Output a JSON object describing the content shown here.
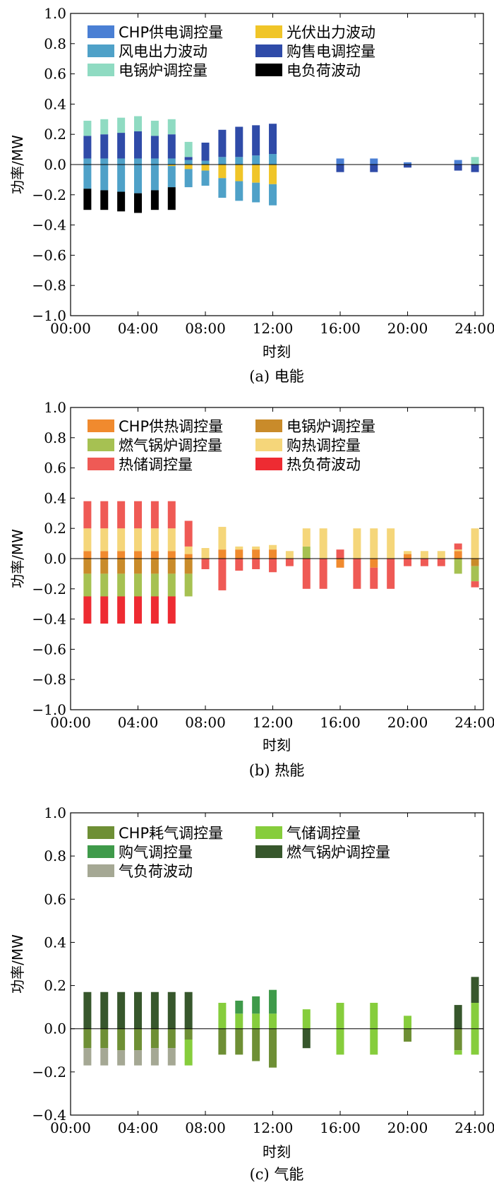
{
  "chart_data": [
    {
      "type": "bar",
      "stacked": true,
      "caption": "(a) 电能",
      "xlabel": "时刻",
      "ylabel": "功率/MW",
      "xlim": [
        0,
        24.5
      ],
      "ylim": [
        -1.0,
        1.0
      ],
      "yticks": [
        "1.0",
        "0.8",
        "0.6",
        "0.4",
        "0.2",
        "0.0",
        "−0.2",
        "−0.4",
        "−0.6",
        "−0.8",
        "−1.0"
      ],
      "xticks": [
        "00:00",
        "04:00",
        "08:00",
        "12:00",
        "16:00",
        "20:00",
        "24:00"
      ],
      "hours": [
        1,
        2,
        3,
        4,
        5,
        6,
        7,
        8,
        9,
        10,
        11,
        12,
        16,
        18,
        20,
        23,
        24
      ],
      "legend": {
        "position": "top-left",
        "columns": 2
      },
      "series": [
        {
          "name": "CHP供电调控量",
          "color": "#4a7fd4",
          "values": [
            0,
            0,
            0,
            0,
            0,
            0,
            0,
            0,
            0,
            0,
            0,
            0,
            0.04,
            0.04,
            0.015,
            0.03,
            0
          ]
        },
        {
          "name": "光伏出力波动",
          "color": "#f0c528",
          "values": [
            0,
            0,
            0,
            0,
            0,
            -0.01,
            -0.03,
            -0.04,
            -0.09,
            -0.11,
            -0.12,
            -0.13,
            0,
            0,
            0,
            0,
            0
          ]
        },
        {
          "name": "风电出力波动",
          "color": "#4fa1c8",
          "values": [
            0.04,
            0.04,
            0.04,
            0.04,
            0.04,
            0.04,
            0.03,
            0.025,
            0.05,
            0.05,
            0.06,
            0.07,
            0,
            0,
            0,
            0,
            0
          ]
        },
        {
          "name": "购售电调控量",
          "color": "#2f4ba8",
          "values": [
            0.15,
            0.16,
            0.17,
            0.18,
            0.15,
            0.16,
            0.02,
            0.12,
            0.18,
            0.2,
            0.2,
            0.2,
            -0.05,
            -0.05,
            -0.02,
            -0.04,
            -0.05
          ]
        },
        {
          "name": "电锅炉调控量",
          "color": "#8fdbc2",
          "values": [
            0.1,
            0.1,
            0.1,
            0.1,
            0.1,
            0.1,
            0.1,
            0,
            0,
            0,
            0,
            0,
            0,
            0,
            0,
            0,
            0.05
          ]
        },
        {
          "name": "风电出力波动",
          "color": "#4fa1c8",
          "values": [
            -0.16,
            -0.17,
            -0.18,
            -0.19,
            -0.17,
            -0.14,
            -0.12,
            -0.1,
            -0.13,
            -0.13,
            -0.13,
            -0.14,
            0,
            0,
            0,
            0,
            0
          ],
          "legend": false
        },
        {
          "name": "电负荷波动",
          "color": "#000000",
          "values": [
            -0.14,
            -0.13,
            -0.13,
            -0.13,
            -0.13,
            -0.15,
            0,
            0,
            0,
            0,
            0,
            0,
            0,
            0,
            0,
            0,
            0
          ]
        }
      ]
    },
    {
      "type": "bar",
      "stacked": true,
      "caption": "(b) 热能",
      "xlabel": "时刻",
      "ylabel": "功率/MW",
      "xlim": [
        0,
        24.5
      ],
      "ylim": [
        -1.0,
        1.0
      ],
      "yticks": [
        "1.0",
        "0.8",
        "0.6",
        "0.4",
        "0.2",
        "0.0",
        "−0.2",
        "−0.4",
        "−0.6",
        "−0.8",
        "−1.0"
      ],
      "xticks": [
        "00:00",
        "04:00",
        "08:00",
        "12:00",
        "16:00",
        "20:00",
        "24:00"
      ],
      "hours": [
        1,
        2,
        3,
        4,
        5,
        6,
        7,
        8,
        9,
        10,
        11,
        12,
        13,
        14,
        15,
        16,
        17,
        18,
        19,
        20,
        21,
        22,
        23,
        24
      ],
      "legend": {
        "position": "top-left",
        "columns": 2
      },
      "series": [
        {
          "name": "CHP供热调控量",
          "color": "#f08a2e",
          "values": [
            0.05,
            0.05,
            0.05,
            0.05,
            0.05,
            0.05,
            0.03,
            0,
            0.06,
            0.06,
            0.06,
            0.06,
            0,
            0,
            0,
            -0.06,
            0,
            -0.06,
            0,
            0.03,
            0,
            0,
            0.05,
            0
          ]
        },
        {
          "name": "电锅炉调控量",
          "color": "#c98b2a",
          "values": [
            -0.1,
            -0.1,
            -0.1,
            -0.1,
            -0.1,
            -0.1,
            -0.1,
            0,
            0,
            0,
            0,
            0,
            0,
            0,
            0,
            0,
            0,
            0,
            0,
            0,
            0,
            0,
            0,
            -0.05
          ]
        },
        {
          "name": "燃气锅炉调控量",
          "color": "#a6c152",
          "values": [
            -0.15,
            -0.15,
            -0.15,
            -0.15,
            -0.15,
            -0.15,
            -0.15,
            0,
            0,
            0,
            0,
            0,
            0,
            0.08,
            0,
            0,
            0,
            0,
            0,
            0,
            0,
            0,
            -0.1,
            -0.1
          ]
        },
        {
          "name": "购热调控量",
          "color": "#f5d67a",
          "values": [
            0.15,
            0.15,
            0.15,
            0.15,
            0.15,
            0.15,
            0.05,
            0.07,
            0.15,
            0.02,
            0.02,
            0.03,
            0.05,
            0.12,
            0.2,
            0,
            0.2,
            0.2,
            0.2,
            0.02,
            0.05,
            0.05,
            0.01,
            0.2
          ]
        },
        {
          "name": "热储调控量",
          "color": "#ef5a55",
          "values": [
            0.18,
            0.18,
            0.18,
            0.18,
            0.18,
            0.18,
            0.17,
            -0.07,
            -0.21,
            -0.08,
            -0.07,
            -0.09,
            -0.05,
            -0.2,
            -0.2,
            0.06,
            -0.2,
            -0.14,
            -0.2,
            -0.05,
            -0.05,
            -0.05,
            0.04,
            -0.04
          ]
        },
        {
          "name": "热负荷波动",
          "color": "#ee2b32",
          "values": [
            -0.18,
            -0.18,
            -0.18,
            -0.18,
            -0.18,
            -0.18,
            0,
            0,
            0,
            0,
            0,
            0,
            0,
            0,
            0,
            0,
            0,
            0,
            0,
            0,
            0,
            0,
            0,
            0
          ]
        }
      ]
    },
    {
      "type": "bar",
      "stacked": true,
      "caption": "(c) 气能",
      "xlabel": "时刻",
      "ylabel": "功率/MW",
      "xlim": [
        0,
        24.5
      ],
      "ylim": [
        -0.4,
        1.0
      ],
      "yticks": [
        "1.0",
        "0.8",
        "0.6",
        "0.4",
        "0.2",
        "0.0",
        "−0.2",
        "−0.4"
      ],
      "xticks": [
        "00:00",
        "04:00",
        "08:00",
        "12:00",
        "16:00",
        "20:00",
        "24:00"
      ],
      "hours": [
        1,
        2,
        3,
        4,
        5,
        6,
        7,
        9,
        10,
        11,
        12,
        14,
        16,
        18,
        20,
        23,
        24
      ],
      "legend": {
        "position": "top-left",
        "columns": 2
      },
      "series": [
        {
          "name": "CHP耗气调控量",
          "color": "#6e8f35",
          "values": [
            -0.09,
            -0.09,
            -0.1,
            -0.1,
            -0.09,
            -0.09,
            -0.05,
            -0.12,
            -0.12,
            -0.15,
            -0.18,
            0,
            0,
            0,
            0,
            -0.1,
            0
          ]
        },
        {
          "name": "气储调控量",
          "color": "#86cd3c",
          "values": [
            0,
            0,
            0,
            0,
            0,
            0,
            -0.12,
            0.12,
            0.07,
            0.07,
            0.07,
            0.09,
            0.12,
            0.12,
            0.06,
            0,
            0.12
          ]
        },
        {
          "name": "购气调控量",
          "color": "#3f9a4a",
          "values": [
            0,
            0,
            0,
            0,
            0,
            0,
            0,
            0,
            0.06,
            0.08,
            0.11,
            0,
            0,
            0,
            0,
            0,
            0
          ]
        },
        {
          "name": "燃气锅炉调控量",
          "color": "#37572c",
          "values": [
            0.17,
            0.17,
            0.17,
            0.17,
            0.17,
            0.17,
            0.17,
            0,
            0,
            0,
            0,
            -0.09,
            0,
            0,
            0,
            0.11,
            0.12
          ]
        },
        {
          "name": "气储调控量",
          "color": "#86cd3c",
          "values": [
            0,
            0,
            0,
            0,
            0,
            0,
            0,
            0,
            0,
            0,
            0,
            0,
            -0.12,
            -0.12,
            0,
            -0.02,
            -0.12
          ],
          "legend": false
        },
        {
          "name": "CHP耗气调控量",
          "color": "#6e8f35",
          "values": [
            0,
            0,
            0,
            0,
            0,
            0,
            0,
            0,
            0,
            0,
            0,
            0,
            0,
            0,
            -0.06,
            0,
            0
          ],
          "legend": false
        },
        {
          "name": "气负荷波动",
          "color": "#a5a894",
          "values": [
            -0.08,
            -0.08,
            -0.07,
            -0.07,
            -0.08,
            -0.08,
            0,
            0,
            0,
            0,
            0,
            0,
            0,
            0,
            0,
            0,
            0
          ]
        }
      ]
    }
  ]
}
